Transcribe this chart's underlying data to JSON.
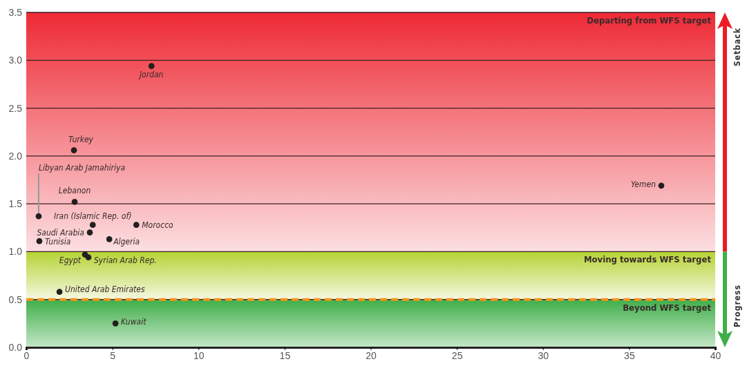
{
  "chart_data": {
    "type": "scatter",
    "xlim": [
      0,
      40
    ],
    "ylim": [
      0,
      3.5
    ],
    "xticks": [
      0,
      5,
      10,
      15,
      20,
      25,
      30,
      35,
      40
    ],
    "yticks": [
      {
        "value": 0,
        "label": "0.0"
      },
      {
        "value": 0.5,
        "label": "0.5"
      },
      {
        "value": 1,
        "label": "1.0"
      },
      {
        "value": 1.5,
        "label": "1.5"
      },
      {
        "value": 2,
        "label": "2.0"
      },
      {
        "value": 2.5,
        "label": "2.5"
      },
      {
        "value": 3,
        "label": "3.0"
      },
      {
        "value": 3.5,
        "label": "3.5"
      }
    ],
    "grid": "y",
    "marker": "circle",
    "series": [
      {
        "name": "Jordan",
        "color": "#231f20",
        "x": [
          7.27
        ],
        "values": [
          2.94
        ]
      },
      {
        "name": "Turkey",
        "color": "#231f20",
        "x": [
          2.77
        ],
        "values": [
          2.06
        ]
      },
      {
        "name": "Libyan Arab Jamahiriya",
        "color": "#231f20",
        "x": [
          0.72
        ],
        "values": [
          1.37
        ]
      },
      {
        "name": "Lebanon",
        "color": "#231f20",
        "x": [
          2.81
        ],
        "values": [
          1.52
        ]
      },
      {
        "name": "Iran (Islamic Rep. of)",
        "color": "#231f20",
        "x": [
          3.86
        ],
        "values": [
          1.28
        ]
      },
      {
        "name": "Saudi Arabia",
        "color": "#231f20",
        "x": [
          3.69
        ],
        "values": [
          1.2
        ]
      },
      {
        "name": "Morocco",
        "color": "#231f20",
        "x": [
          6.39
        ],
        "values": [
          1.28
        ]
      },
      {
        "name": "Tunisia",
        "color": "#231f20",
        "x": [
          0.76
        ],
        "values": [
          1.11
        ]
      },
      {
        "name": "Algeria",
        "color": "#231f20",
        "x": [
          4.82
        ],
        "values": [
          1.13
        ]
      },
      {
        "name": "Egypt",
        "color": "#231f20",
        "x": [
          3.41
        ],
        "values": [
          0.97
        ]
      },
      {
        "name": "Syrian Arab Rep.",
        "color": "#231f20",
        "x": [
          3.61
        ],
        "values": [
          0.94
        ]
      },
      {
        "name": "United Arab Emirates",
        "color": "#231f20",
        "x": [
          1.93
        ],
        "values": [
          0.58
        ]
      },
      {
        "name": "Kuwait",
        "color": "#231f20",
        "x": [
          5.18
        ],
        "values": [
          0.25
        ]
      },
      {
        "name": "Yemen",
        "color": "#231f20",
        "x": [
          36.87
        ],
        "values": [
          1.69
        ]
      }
    ],
    "bands": [
      {
        "axis": "y",
        "from": 1,
        "to": 3.5,
        "label": "Departing from WFS target",
        "color": "#ee2a35"
      },
      {
        "axis": "y",
        "from": 0.5,
        "to": 1,
        "label": "Moving towards WFS target",
        "color": "#b5d334"
      },
      {
        "axis": "y",
        "from": 0,
        "to": 0.5,
        "label": "Beyond WFS target",
        "color": "#3fae49"
      }
    ],
    "ref_lines": [
      {
        "axis": "y",
        "value": 0.5,
        "color": "#f7941d",
        "line_style": "dashed"
      }
    ],
    "annotations": [
      "Setback",
      "Progress"
    ]
  }
}
